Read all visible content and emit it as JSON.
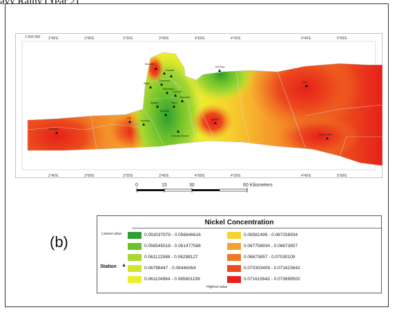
{
  "top_caption": "avy Rainy (Year 2)",
  "panel_label": "(b)",
  "map": {
    "top_left_coord": "1 650 000",
    "top_ticks": [
      "2°40'E",
      "3°00'E",
      "3°20'E",
      "3°40'E",
      "4°00'E",
      "4°20'E",
      "4°40'E",
      "5°00'E"
    ],
    "bottom_ticks": [
      "2°40'E",
      "3°00'E",
      "3°20'E",
      "3°40'E",
      "4°00'E",
      "4°20'E",
      "4°40'E",
      "5°00'E"
    ],
    "stations": [
      "Ikorodu",
      "Kosofe",
      "Shomolu",
      "Ikeja",
      "Alimosho",
      "Oshodi",
      "Agege",
      "Ifako",
      "Mushin",
      "Surulere",
      "Apapa",
      "Lagos Island",
      "Eti-Osa",
      "Epe",
      "Ibeju-Lekki",
      "Badagry",
      "Ojo",
      "Amuwo",
      "Victoria Island"
    ],
    "colors": {
      "deep_green": "#2ea02e",
      "green": "#6cc12c",
      "light_green": "#a8d832",
      "yellow_green": "#d2e52e",
      "yellow": "#ecee2c",
      "amber": "#f6d22c",
      "orange": "#f6a12c",
      "dark_orange": "#f07824",
      "red_orange": "#ec4a1c",
      "red": "#e6201a"
    }
  },
  "scale_bar": {
    "ticks": [
      "0",
      "15",
      "30",
      "60 Kilometers"
    ]
  },
  "legend": {
    "title": "Nickel Concentration",
    "lowest_label": "Lowest value",
    "highest_label": "Highest value",
    "station_label": "Station",
    "station_symbol": "▲",
    "left_items": [
      {
        "range": "0.053037979 - 0.056846616",
        "color": "#2ea02e"
      },
      {
        "range": "0.058545518 - 0.061477588",
        "color": "#6cc12c"
      },
      {
        "range": "0.061122588 - 0.06298127",
        "color": "#a8d832"
      },
      {
        "range": "0.06798447 - 0.06446064",
        "color": "#d2e52e"
      },
      {
        "range": "0.061104964 - 0.065801199",
        "color": "#ecee2c"
      }
    ],
    "right_items": [
      {
        "range": "0.06581499 - 0.067258934",
        "color": "#f6d22c"
      },
      {
        "range": "0.067758934 - 0.06873857",
        "color": "#f6a12c"
      },
      {
        "range": "0.06873857 - 0.07030109",
        "color": "#f07824"
      },
      {
        "range": "0.070303409 - 0.071615642",
        "color": "#ec4a1c"
      },
      {
        "range": "0.071615642 - 0.073699502",
        "color": "#e6201a"
      }
    ]
  }
}
